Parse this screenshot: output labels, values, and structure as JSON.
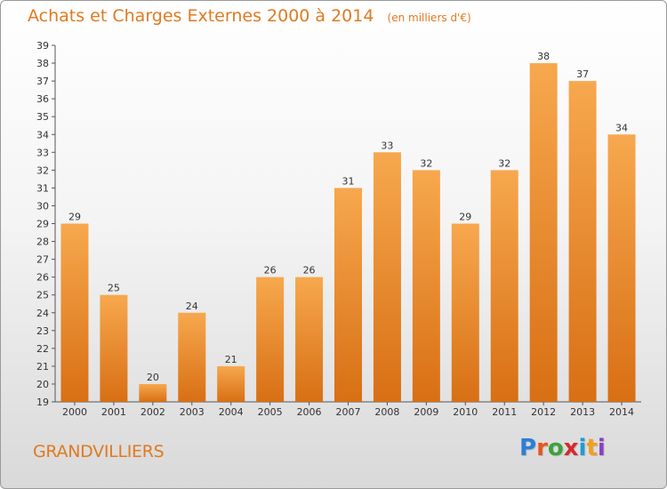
{
  "header": {
    "title": "Achats et Charges Externes 2000 à 2014",
    "unit": "(en milliers d'€)"
  },
  "footer": {
    "commune": "GRANDVILLIERS",
    "logo": "Proxiti"
  },
  "colors": {
    "bar_light": "#f7a84e",
    "bar_dark": "#d86f14",
    "accent": "#e07a20"
  },
  "chart_data": {
    "type": "bar",
    "title": "Achats et Charges Externes 2000 à 2014",
    "subtitle": "(en milliers d'€)",
    "xlabel": "",
    "ylabel": "",
    "ylim": [
      19,
      39
    ],
    "categories": [
      "2000",
      "2001",
      "2002",
      "2003",
      "2004",
      "2005",
      "2006",
      "2007",
      "2008",
      "2009",
      "2010",
      "2011",
      "2012",
      "2013",
      "2014"
    ],
    "values": [
      29,
      25,
      20,
      24,
      21,
      26,
      26,
      31,
      33,
      32,
      29,
      32,
      38,
      37,
      34
    ],
    "grid": false,
    "legend": "none"
  }
}
